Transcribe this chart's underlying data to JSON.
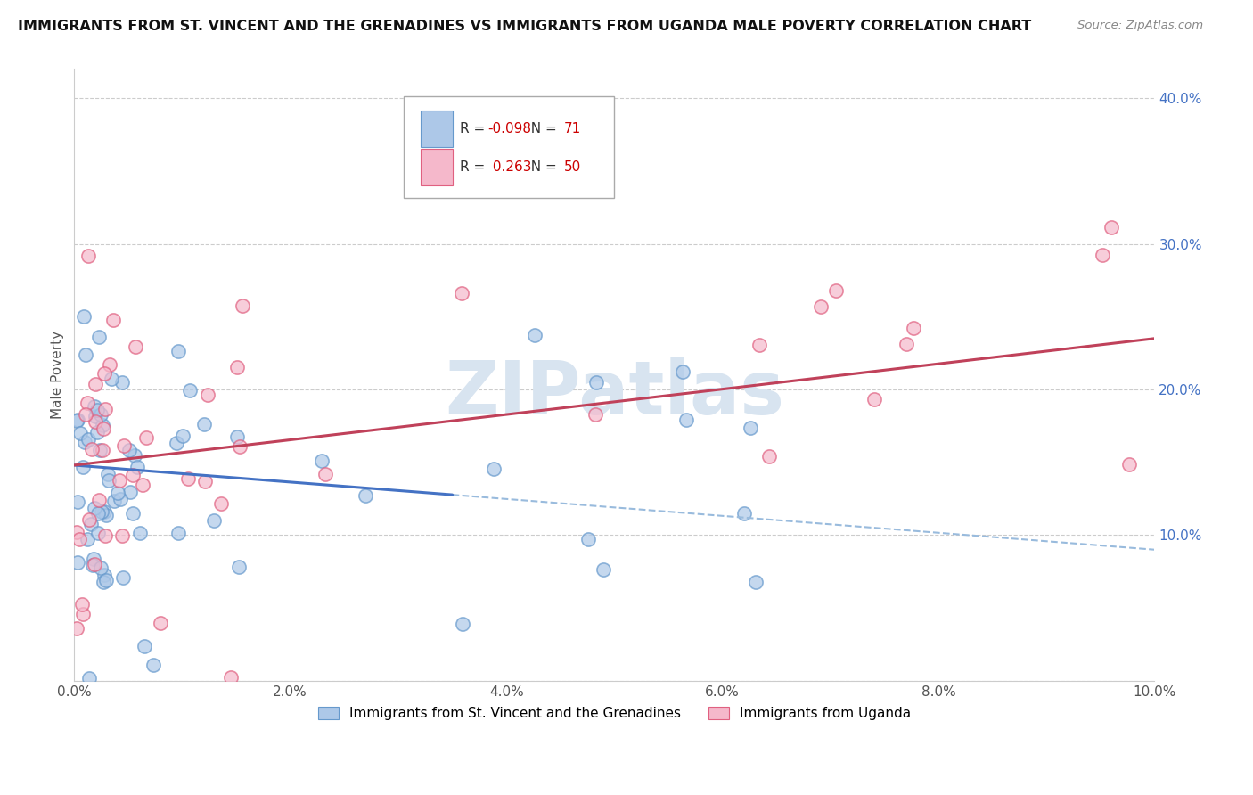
{
  "title": "IMMIGRANTS FROM ST. VINCENT AND THE GRENADINES VS IMMIGRANTS FROM UGANDA MALE POVERTY CORRELATION CHART",
  "source": "Source: ZipAtlas.com",
  "ylabel": "Male Poverty",
  "series1_label": "Immigrants from St. Vincent and the Grenadines",
  "series2_label": "Immigrants from Uganda",
  "series1_R": -0.098,
  "series1_N": 71,
  "series2_R": 0.263,
  "series2_N": 50,
  "series1_color": "#adc8e8",
  "series2_color": "#f5b8cb",
  "series1_edge": "#6699cc",
  "series2_edge": "#e06080",
  "xlim": [
    0.0,
    0.1
  ],
  "ylim": [
    0.0,
    0.42
  ],
  "yticks": [
    0.0,
    0.1,
    0.2,
    0.3,
    0.4
  ],
  "ytick_labels": [
    "",
    "10.0%",
    "20.0%",
    "30.0%",
    "40.0%"
  ],
  "trend1_color": "#4472c4",
  "trend2_color": "#c0415a",
  "dash_color": "#99bbdd",
  "watermark_color": "#d8e4f0",
  "legend_R1_color": "#cc0000",
  "legend_N1_color": "#cc0000",
  "legend_R2_color": "#cc0000",
  "legend_N2_color": "#cc0000"
}
